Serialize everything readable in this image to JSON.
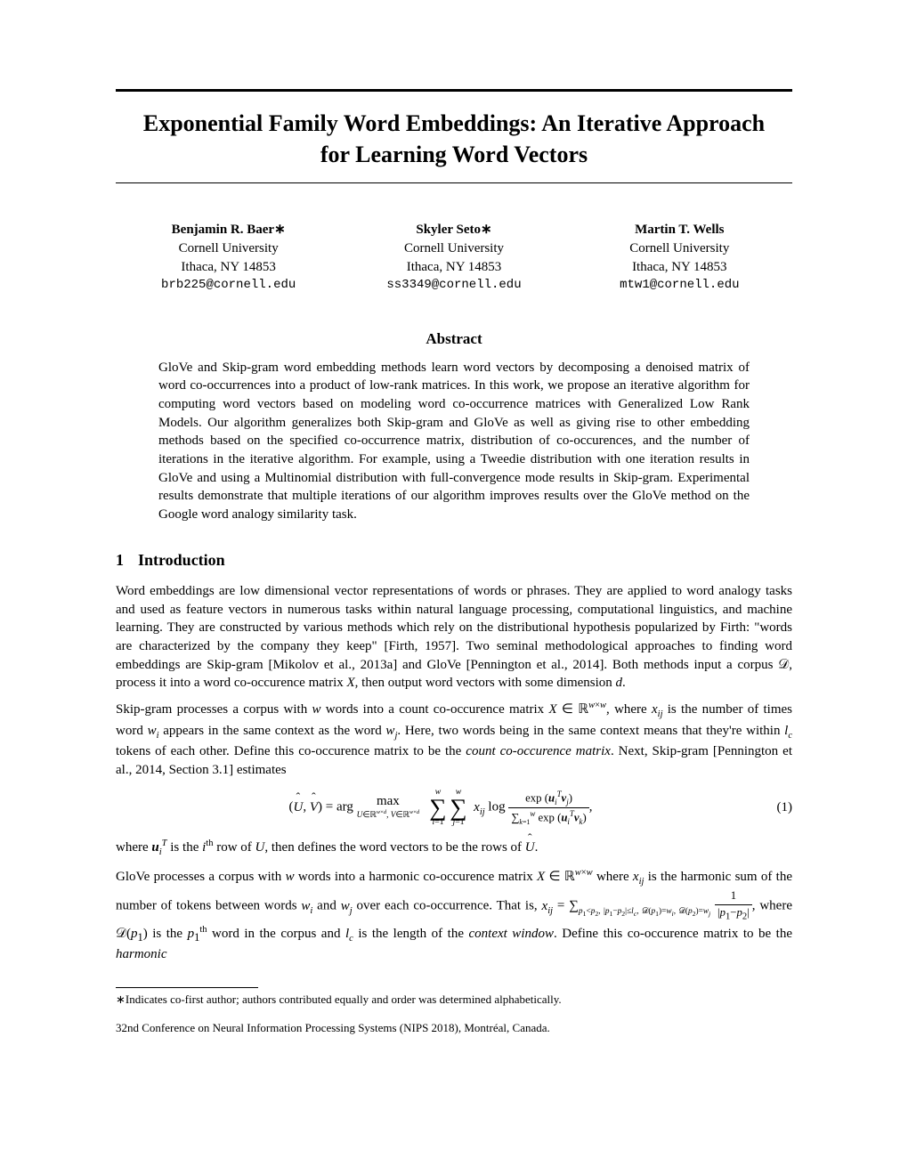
{
  "title": "Exponential Family Word Embeddings: An Iterative Approach for Learning Word Vectors",
  "authors": [
    {
      "name": "Benjamin R. Baer",
      "star": "∗",
      "affil": "Cornell University",
      "loc": "Ithaca, NY 14853",
      "email": "brb225@cornell.edu"
    },
    {
      "name": "Skyler Seto",
      "star": "∗",
      "affil": "Cornell University",
      "loc": "Ithaca, NY 14853",
      "email": "ss3349@cornell.edu"
    },
    {
      "name": "Martin T. Wells",
      "star": "",
      "affil": "Cornell University",
      "loc": "Ithaca, NY 14853",
      "email": "mtw1@cornell.edu"
    }
  ],
  "abstract_heading": "Abstract",
  "abstract": "GloVe and Skip-gram word embedding methods learn word vectors by decomposing a denoised matrix of word co-occurrences into a product of low-rank matrices. In this work, we propose an iterative algorithm for computing word vectors based on modeling word co-occurrence matrices with Generalized Low Rank Models. Our algorithm generalizes both Skip-gram and GloVe as well as giving rise to other embedding methods based on the specified co-occurrence matrix, distribution of co-occurences, and the number of iterations in the iterative algorithm. For example, using a Tweedie distribution with one iteration results in GloVe and using a Multinomial distribution with full-convergence mode results in Skip-gram. Experimental results demonstrate that multiple iterations of our algorithm improves results over the GloVe method on the Google word analogy similarity task.",
  "section1_number": "1",
  "section1_title": "Introduction",
  "footnote_marker": "∗",
  "footnote_text": "Indicates co-first author; authors contributed equally and order was determined alphabetically.",
  "venue": "32nd Conference on Neural Information Processing Systems (NIPS 2018), Montréal, Canada.",
  "eq_number": "(1)"
}
